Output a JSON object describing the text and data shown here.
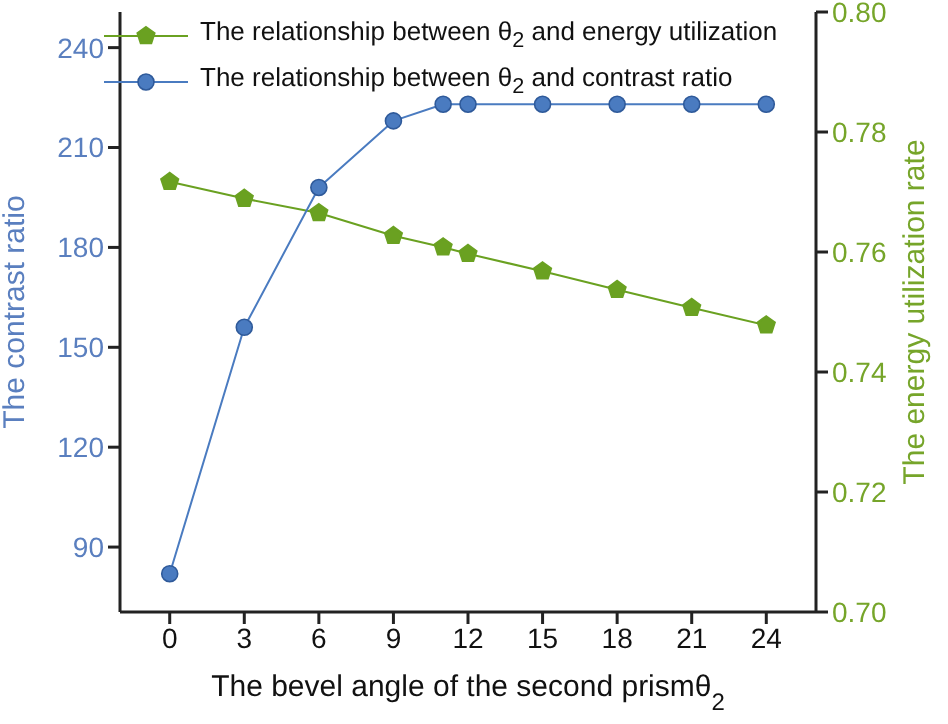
{
  "chart_data": {
    "type": "line",
    "xlabel": "The bevel angle of the second prismθ$_{2}$",
    "ylabel": "The contrast ratio",
    "y2label": "The energy utilization rate",
    "x": [
      0,
      3,
      6,
      9,
      11,
      12,
      15,
      18,
      21,
      24
    ],
    "series": [
      {
        "name": "The relationship between θ$_{2}$ and energy utilization",
        "color": "#6aa121",
        "axis": "y2",
        "marker": "star",
        "values": [
          0.7717,
          0.7689,
          0.7665,
          0.7627,
          0.7608,
          0.7597,
          0.7568,
          0.7537,
          0.7507,
          0.7478
        ]
      },
      {
        "name": "The relationship between θ$_{2}$ and contrast ratio",
        "color": "#4a7bc0",
        "marker": "circle",
        "values": [
          82,
          156,
          198,
          218,
          223,
          223,
          223,
          223,
          223,
          223
        ]
      }
    ],
    "xlim": [
      -2,
      26
    ],
    "xticks": [
      0,
      3,
      6,
      9,
      12,
      15,
      18,
      21,
      24
    ],
    "ylim": [
      70.5,
      250.7
    ],
    "yticks": [
      90,
      120,
      150,
      180,
      210,
      240
    ],
    "y2lim": [
      0.7,
      0.8
    ],
    "y2ticks": [
      {
        "value": 0.7,
        "label": "0.70"
      },
      {
        "value": 0.72,
        "label": "0.72"
      },
      {
        "value": 0.74,
        "label": "0.74"
      },
      {
        "value": 0.76,
        "label": "0.76"
      },
      {
        "value": 0.78,
        "label": "0.78"
      },
      {
        "value": 0.8,
        "label": "0.80"
      }
    ],
    "legend": "top left",
    "line_style": "solid"
  }
}
